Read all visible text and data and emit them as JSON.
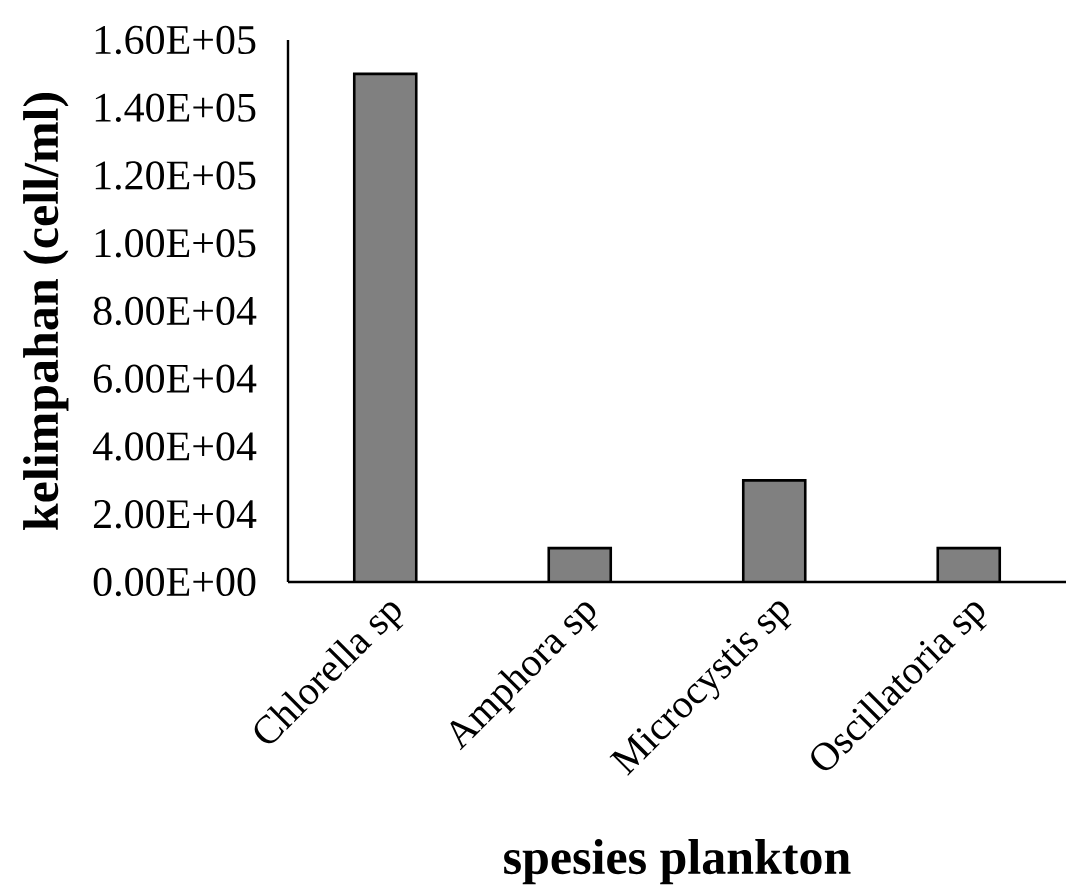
{
  "chart_data": {
    "type": "bar",
    "xlabel": "spesies plankton",
    "ylabel": "kelimpahan (cell/ml)",
    "categories": [
      "Chlorella sp",
      "Amphora sp",
      "Microcystis sp",
      "Oscillatoria sp"
    ],
    "values": [
      150000,
      10000,
      30000,
      10000
    ],
    "color": "#808080",
    "ylim": [
      0,
      160000
    ],
    "yticks": [
      {
        "value": 0,
        "label": "0.00E+00"
      },
      {
        "value": 20000,
        "label": "2.00E+04"
      },
      {
        "value": 40000,
        "label": "4.00E+04"
      },
      {
        "value": 60000,
        "label": "6.00E+04"
      },
      {
        "value": 80000,
        "label": "8.00E+04"
      },
      {
        "value": 100000,
        "label": "1.00E+05"
      },
      {
        "value": 120000,
        "label": "1.20E+05"
      },
      {
        "value": 140000,
        "label": "1.40E+05"
      },
      {
        "value": 160000,
        "label": "1.60E+05"
      }
    ],
    "grid": false
  }
}
